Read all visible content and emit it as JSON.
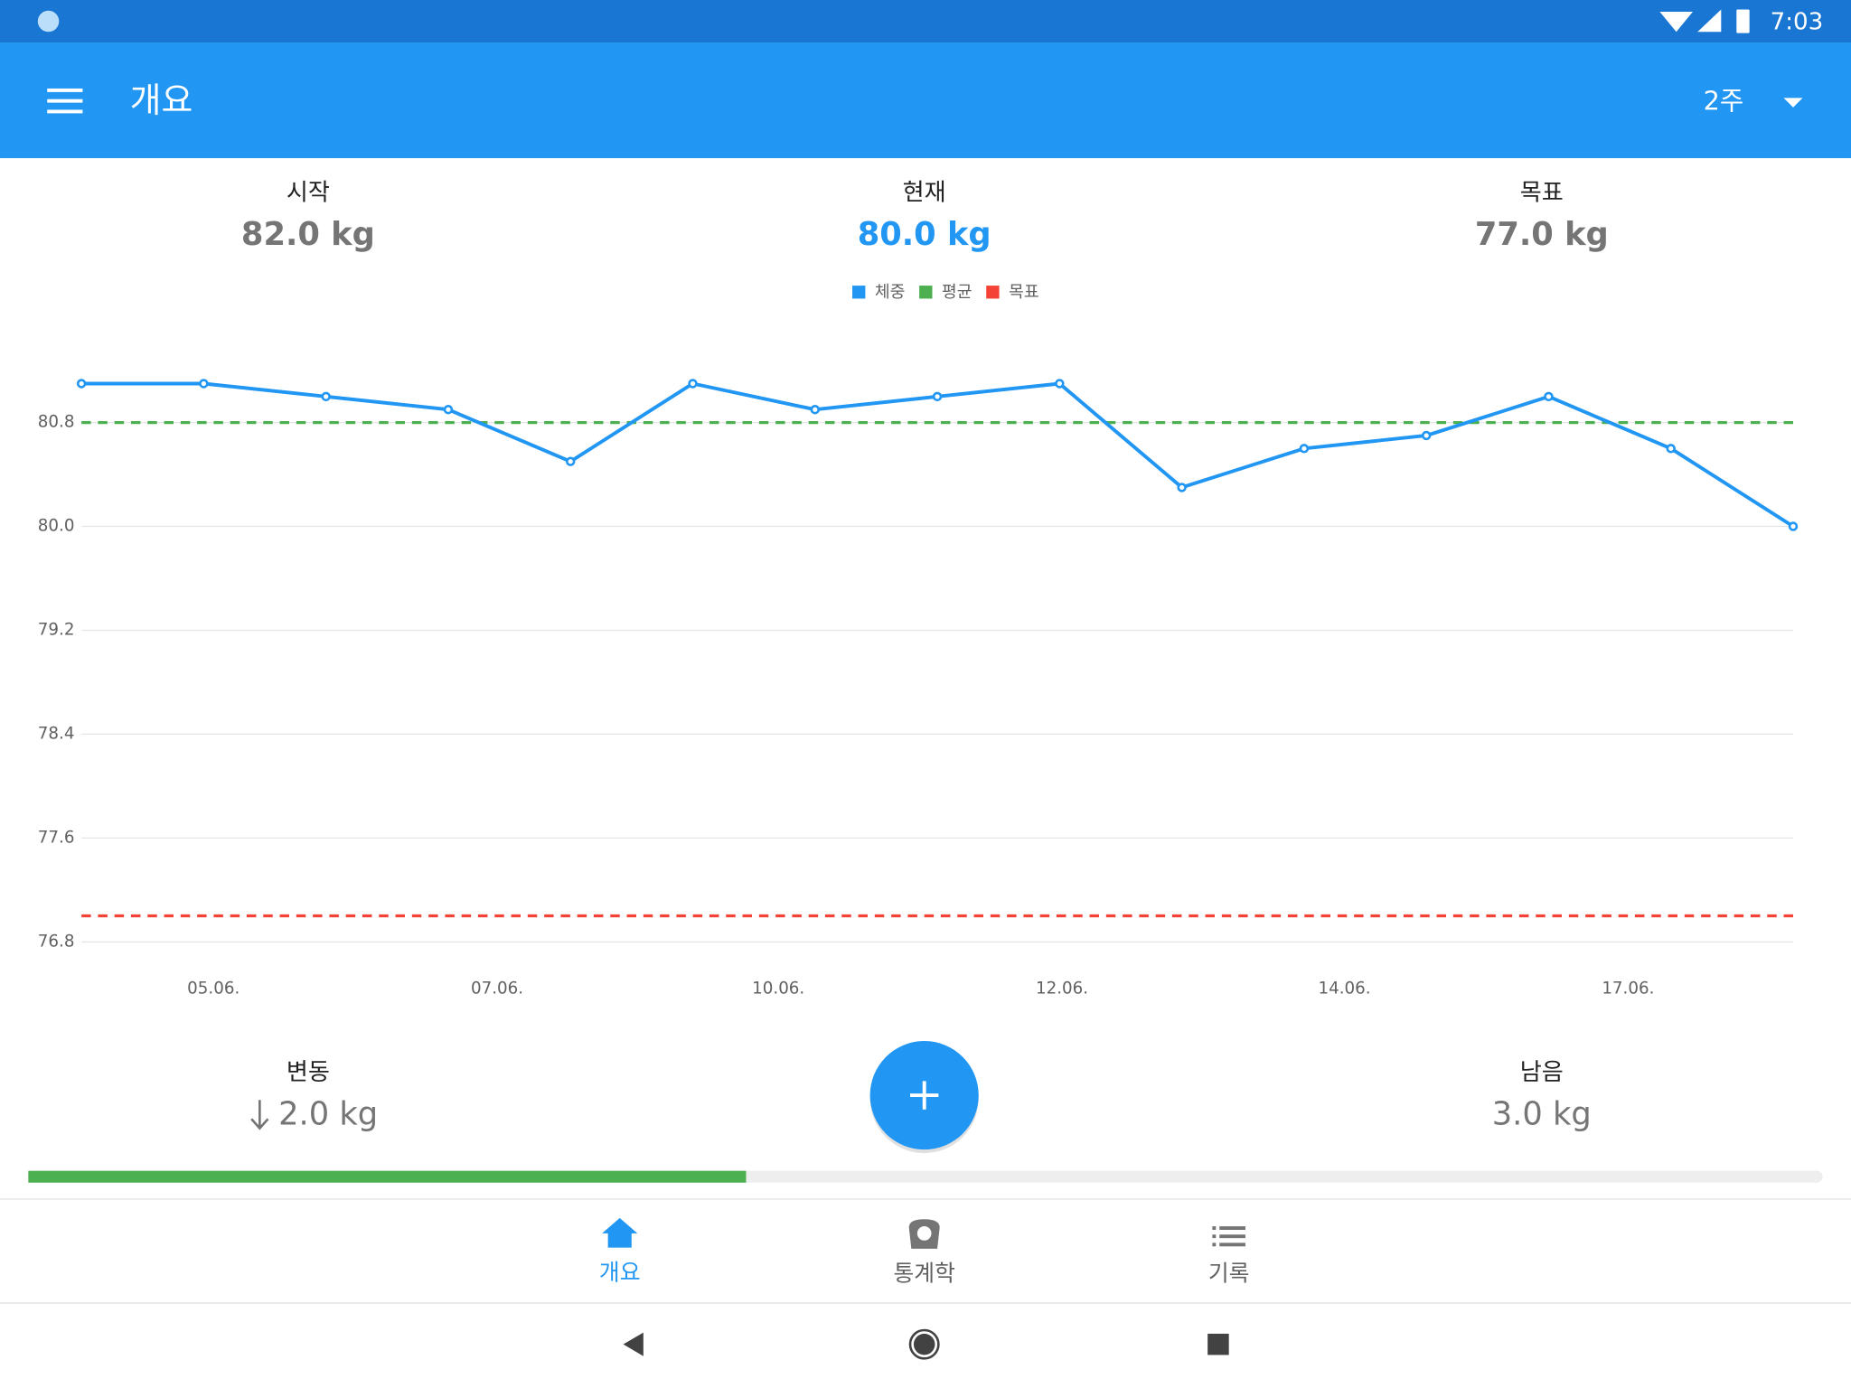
{
  "status_bar": {
    "time": "7:03"
  },
  "app_bar": {
    "title": "개요",
    "range": "2주"
  },
  "summary": [
    {
      "label": "시작",
      "value": "82.0 kg"
    },
    {
      "label": "현재",
      "value": "80.0 kg"
    },
    {
      "label": "목표",
      "value": "77.0 kg"
    }
  ],
  "chart_data": {
    "type": "line",
    "x": [
      0,
      1,
      2,
      3,
      4,
      5,
      6,
      7,
      8,
      9,
      10,
      11,
      12,
      13,
      14
    ],
    "xlim": [
      0,
      14
    ],
    "xticks": [
      {
        "value": 1.08,
        "label": "05.06."
      },
      {
        "value": 3.4,
        "label": "07.06."
      },
      {
        "value": 5.7,
        "label": "10.06."
      },
      {
        "value": 8.02,
        "label": "12.06."
      },
      {
        "value": 10.33,
        "label": "14.06."
      },
      {
        "value": 12.65,
        "label": "17.06."
      }
    ],
    "series": [
      {
        "name": "체중",
        "color": "#2196f3",
        "values": [
          81.1,
          81.1,
          81.0,
          80.9,
          80.5,
          81.1,
          80.9,
          81.0,
          81.1,
          80.3,
          80.6,
          80.7,
          81.0,
          80.6,
          80.0
        ]
      }
    ],
    "reference_lines": [
      {
        "name": "평균",
        "color": "#4caf50",
        "value": 80.8
      },
      {
        "name": "목표",
        "color": "#f44336",
        "value": 77.0
      }
    ],
    "ylim": [
      76.8,
      81.4
    ],
    "yticks": [
      {
        "value": 76.8,
        "label": "76.8"
      },
      {
        "value": 77.6,
        "label": "77.6"
      },
      {
        "value": 78.4,
        "label": "78.4"
      },
      {
        "value": 79.2,
        "label": "79.2"
      },
      {
        "value": 80.0,
        "label": "80.0"
      },
      {
        "value": 80.8,
        "label": "80.8"
      }
    ],
    "grid": true
  },
  "bottom_stats": [
    {
      "label": "변동",
      "value": "2.0 kg"
    },
    {
      "label": "남음",
      "value": "3.0 kg"
    }
  ],
  "progress_percent": 40,
  "tabs": [
    "개요",
    "통계학",
    "기록"
  ]
}
